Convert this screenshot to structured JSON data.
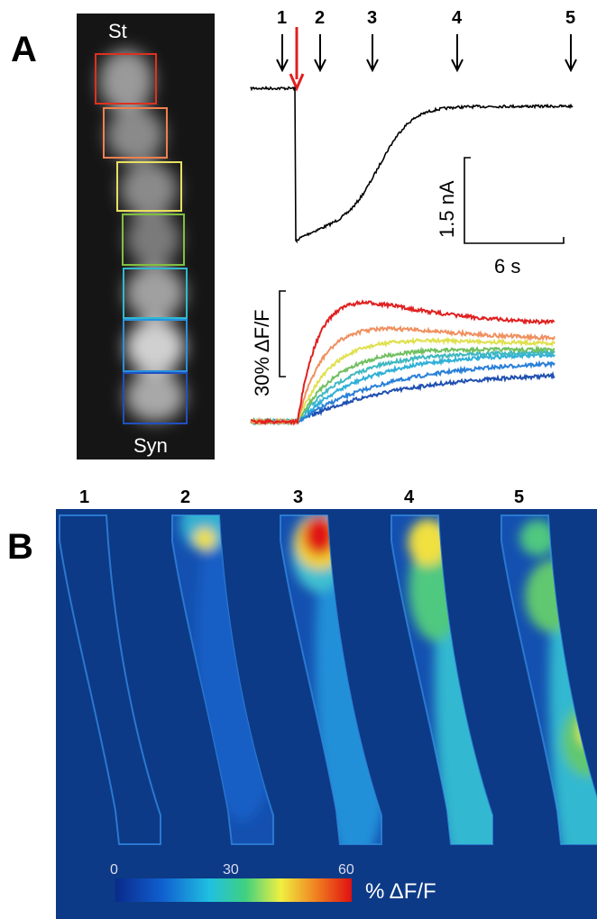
{
  "panel_a": {
    "label": "A",
    "image_labels": [
      "St",
      "Syn"
    ],
    "stimulus_markers": [
      "1",
      "2",
      "3",
      "4",
      "5"
    ],
    "current_scale": "1.5 nA",
    "time_scale": "6 s",
    "fluorescence_scale": "30% ΔF/F"
  },
  "panel_b": {
    "label": "B",
    "frame_labels": [
      "1",
      "2",
      "3",
      "4",
      "5"
    ],
    "colorbar": {
      "tick_labels": [
        "0",
        "30",
        "60"
      ],
      "label": "% ΔF/F"
    }
  }
}
